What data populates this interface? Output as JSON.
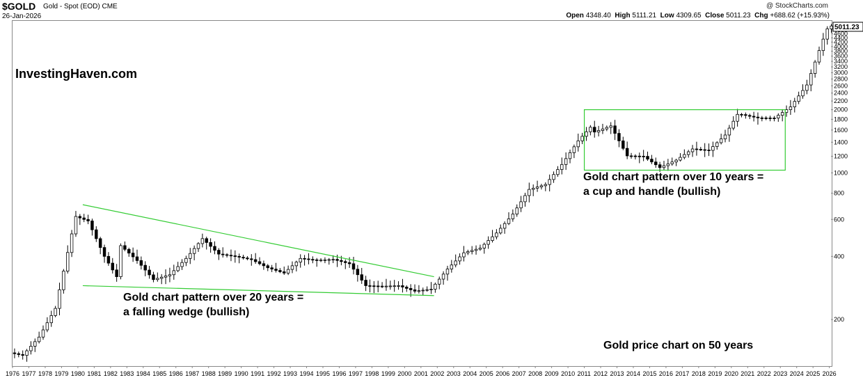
{
  "header": {
    "symbol": "$GOLD",
    "description": "Gold - Spot (EOD)",
    "exchange": "CME",
    "date": "26-Jan-2026",
    "copyright": "@ StockCharts.com",
    "open_label": "Open",
    "open": "4348.40",
    "high_label": "High",
    "high": "5111.21",
    "low_label": "Low",
    "low": "4309.65",
    "close_label": "Close",
    "close": "5011.23",
    "chg_label": "Chg",
    "chg": "+688.62 (+15.93%)"
  },
  "colors": {
    "candle": "#000000",
    "pattern": "#33cc33",
    "last_box_border": "#000000"
  },
  "annotations": {
    "brand": "InvestingHaven.com",
    "wedge_line1": "Gold chart pattern over 20 years =",
    "wedge_line2": "a falling wedge (bullish)",
    "cup_line1": "Gold chart pattern over 10 years =",
    "cup_line2": "a cup and handle (bullish)",
    "footer": "Gold price chart on 50 years"
  },
  "chart_data": {
    "type": "candlestick",
    "scale": "log",
    "interval": "quarterly",
    "y_ticks": [
      200,
      400,
      600,
      800,
      1000,
      1200,
      1400,
      1600,
      1800,
      2000,
      2200,
      2400,
      2600,
      2800,
      3000,
      3200,
      3400,
      3600,
      3800,
      4000,
      4200,
      4400,
      4600,
      4800,
      5000
    ],
    "last_value_label": "5011.23",
    "x_labels": [
      "1976",
      "1977",
      "1978",
      "1979",
      "1980",
      "1981",
      "1982",
      "1983",
      "1984",
      "1985",
      "1986",
      "1987",
      "1988",
      "1989",
      "1990",
      "1991",
      "1992",
      "1993",
      "1994",
      "1995",
      "1996",
      "1997",
      "1998",
      "1999",
      "2000",
      "2001",
      "2002",
      "2003",
      "2004",
      "2005",
      "2006",
      "2007",
      "2008",
      "2009",
      "2010",
      "2011",
      "2012",
      "2013",
      "2014",
      "2015",
      "2016",
      "2017",
      "2018",
      "2019",
      "2020",
      "2021",
      "2022",
      "2023",
      "2024",
      "2025",
      "2026"
    ],
    "xlim": [
      1976,
      2026.1
    ],
    "ylim": [
      120,
      5300
    ],
    "annual_close": [
      [
        1975.75,
        140
      ],
      [
        1976.75,
        135
      ],
      [
        1977.75,
        165
      ],
      [
        1978.75,
        226
      ],
      [
        1979.75,
        512
      ],
      [
        1980.0,
        620
      ],
      [
        1980.75,
        590
      ],
      [
        1981.75,
        400
      ],
      [
        1982.5,
        320
      ],
      [
        1982.75,
        450
      ],
      [
        1983.75,
        382
      ],
      [
        1984.75,
        310
      ],
      [
        1985.75,
        327
      ],
      [
        1986.75,
        391
      ],
      [
        1987.75,
        486
      ],
      [
        1988.75,
        410
      ],
      [
        1989.75,
        400
      ],
      [
        1990.75,
        386
      ],
      [
        1991.75,
        353
      ],
      [
        1992.75,
        333
      ],
      [
        1993.75,
        391
      ],
      [
        1994.75,
        383
      ],
      [
        1995.75,
        387
      ],
      [
        1996.75,
        369
      ],
      [
        1997.75,
        290
      ],
      [
        1998.75,
        288
      ],
      [
        1999.75,
        290
      ],
      [
        2000.75,
        273
      ],
      [
        2001.75,
        279
      ],
      [
        2002.75,
        348
      ],
      [
        2003.75,
        416
      ],
      [
        2004.75,
        438
      ],
      [
        2005.75,
        517
      ],
      [
        2006.75,
        636
      ],
      [
        2007.75,
        834
      ],
      [
        2008.75,
        880
      ],
      [
        2009.75,
        1096
      ],
      [
        2010.75,
        1421
      ],
      [
        2011.5,
        1650
      ],
      [
        2011.75,
        1565
      ],
      [
        2012.75,
        1675
      ],
      [
        2013.75,
        1205
      ],
      [
        2014.75,
        1199
      ],
      [
        2015.75,
        1060
      ],
      [
        2016.75,
        1150
      ],
      [
        2017.75,
        1300
      ],
      [
        2018.75,
        1280
      ],
      [
        2019.75,
        1515
      ],
      [
        2020.5,
        1900
      ],
      [
        2020.75,
        1895
      ],
      [
        2021.75,
        1828
      ],
      [
        2022.75,
        1824
      ],
      [
        2023.75,
        2063
      ],
      [
        2024.75,
        2624
      ],
      [
        2025.75,
        4340
      ],
      [
        2026.07,
        5011.23
      ]
    ],
    "patterns": [
      {
        "name": "falling wedge",
        "start": 1980.3,
        "end": 2001.8,
        "upper": [
          705,
          320
        ],
        "lower": [
          290,
          260
        ]
      },
      {
        "name": "cup and handle",
        "start": 2011.0,
        "end": 2023.3,
        "top": 2000,
        "bottom": 1030
      }
    ]
  }
}
